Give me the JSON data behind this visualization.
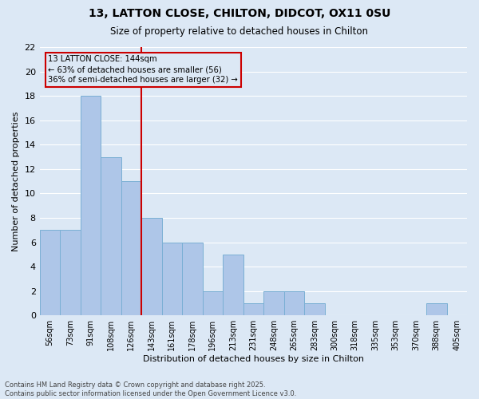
{
  "title": "13, LATTON CLOSE, CHILTON, DIDCOT, OX11 0SU",
  "subtitle": "Size of property relative to detached houses in Chilton",
  "xlabel": "Distribution of detached houses by size in Chilton",
  "ylabel": "Number of detached properties",
  "footer": "Contains HM Land Registry data © Crown copyright and database right 2025.\nContains public sector information licensed under the Open Government Licence v3.0.",
  "categories": [
    "56sqm",
    "73sqm",
    "91sqm",
    "108sqm",
    "126sqm",
    "143sqm",
    "161sqm",
    "178sqm",
    "196sqm",
    "213sqm",
    "231sqm",
    "248sqm",
    "265sqm",
    "283sqm",
    "300sqm",
    "318sqm",
    "335sqm",
    "353sqm",
    "370sqm",
    "388sqm",
    "405sqm"
  ],
  "values": [
    7,
    7,
    18,
    13,
    11,
    8,
    6,
    6,
    2,
    5,
    1,
    2,
    2,
    1,
    0,
    0,
    0,
    0,
    0,
    1,
    0
  ],
  "bar_color": "#aec6e8",
  "bar_edge_color": "#7aafd4",
  "background_color": "#dce8f5",
  "grid_color": "#ffffff",
  "ref_line_color": "#cc0000",
  "annotation_text": "13 LATTON CLOSE: 144sqm\n← 63% of detached houses are smaller (56)\n36% of semi-detached houses are larger (32) →",
  "annotation_box_color": "#cc0000",
  "ylim": [
    0,
    22
  ],
  "yticks": [
    0,
    2,
    4,
    6,
    8,
    10,
    12,
    14,
    16,
    18,
    20,
    22
  ],
  "ref_line_xindex": 5
}
